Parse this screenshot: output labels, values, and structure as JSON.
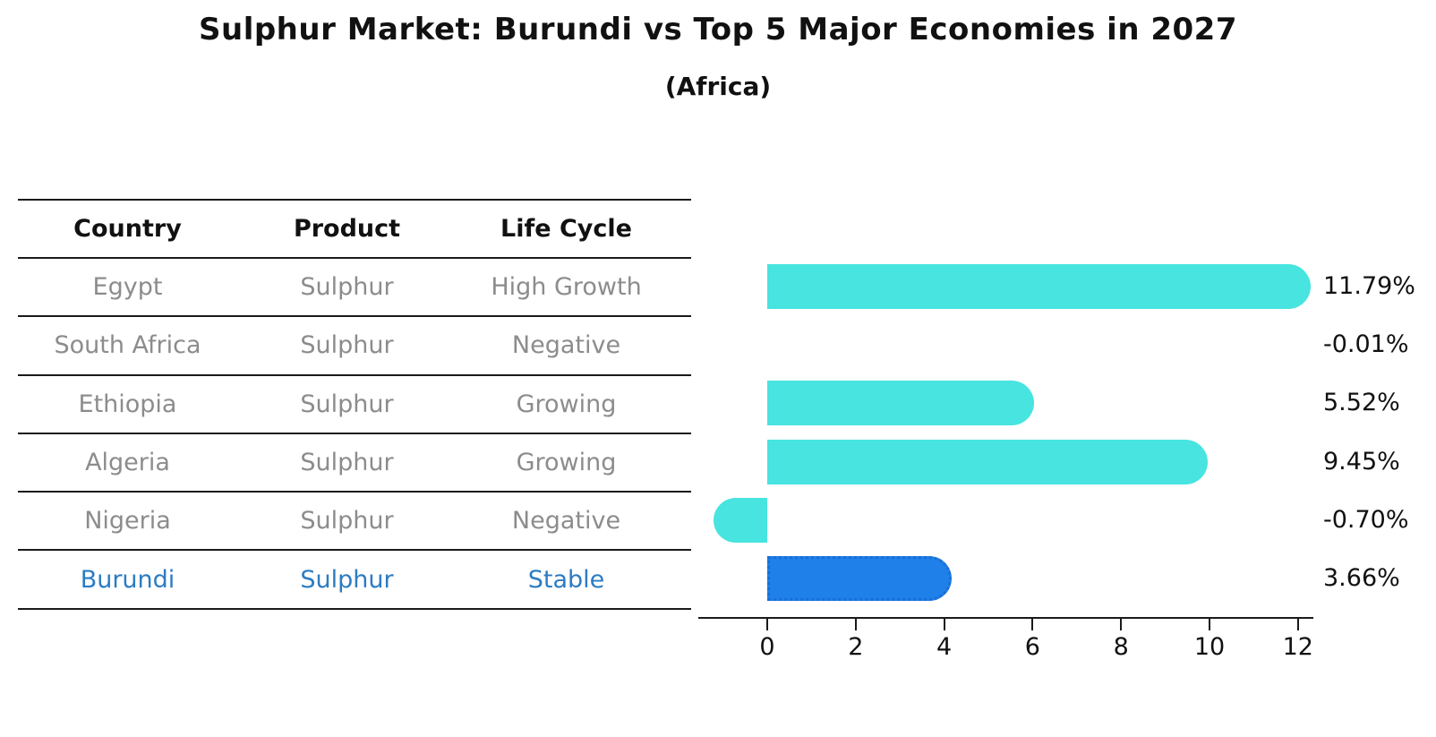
{
  "title": "Sulphur Market: Burundi vs Top 5 Major Economies in 2027",
  "subtitle": "(Africa)",
  "table": {
    "headers": [
      "Country",
      "Product",
      "Life Cycle"
    ],
    "rows": [
      {
        "country": "Egypt",
        "product": "Sulphur",
        "life_cycle": "High Growth",
        "highlighted": false
      },
      {
        "country": "South Africa",
        "product": "Sulphur",
        "life_cycle": "Negative",
        "highlighted": false
      },
      {
        "country": "Ethiopia",
        "product": "Sulphur",
        "life_cycle": "Growing",
        "highlighted": false
      },
      {
        "country": "Algeria",
        "product": "Sulphur",
        "life_cycle": "Growing",
        "highlighted": false
      },
      {
        "country": "Nigeria",
        "product": "Sulphur",
        "life_cycle": "Negative",
        "highlighted": false
      },
      {
        "country": "Burundi",
        "product": "Sulphur",
        "life_cycle": "Stable",
        "highlighted": true
      }
    ]
  },
  "chart_data": {
    "type": "bar",
    "orientation": "horizontal",
    "title": "Sulphur Market: Burundi vs Top 5 Major Economies in 2027",
    "subtitle": "(Africa)",
    "categories": [
      "Egypt",
      "South Africa",
      "Ethiopia",
      "Algeria",
      "Nigeria",
      "Burundi"
    ],
    "values": [
      11.79,
      -0.01,
      5.52,
      9.45,
      -0.7,
      3.66
    ],
    "value_labels": [
      "11.79%",
      "-0.01%",
      "5.52%",
      "9.45%",
      "-0.70%",
      "3.66%"
    ],
    "unit": "percent",
    "x_ticks": [
      0,
      2,
      4,
      6,
      8,
      10,
      12
    ],
    "xlim": [
      -1.6,
      12.4
    ],
    "highlight_index": 5,
    "grid": false,
    "legend": false
  },
  "colors": {
    "bar_default": "#47E4E0",
    "bar_highlight": "#1E80E8",
    "bar_highlight_border": "#1A6ED6",
    "highlight_text": "#2B7CC2",
    "row_text": "#8C8C8C",
    "header_text": "#111111",
    "axis": "#1A1A1A"
  }
}
